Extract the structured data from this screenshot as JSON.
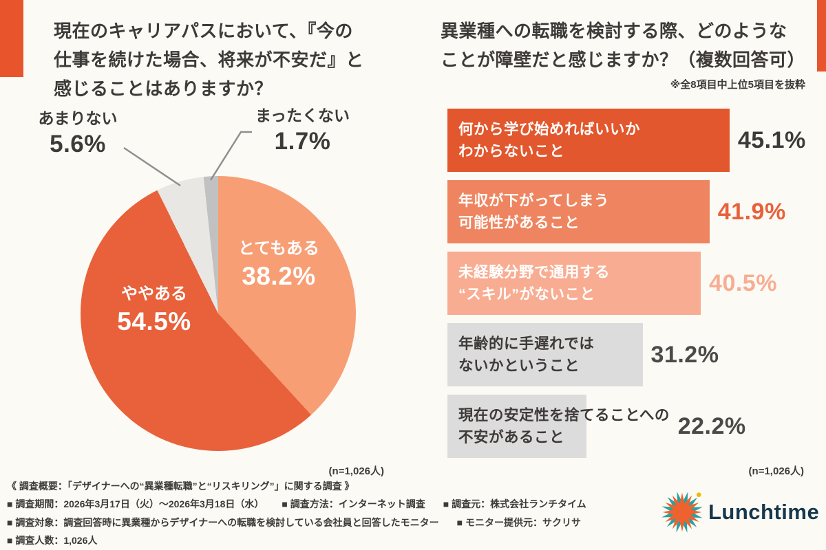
{
  "colors": {
    "bg": "#FCFAF4",
    "accent": "#E8542C",
    "text": "#3E3A39",
    "logo_text": "#16384E"
  },
  "left_chart": {
    "title": "現在のキャリアパスにおいて、『今の\n仕事を続けた場合、将来が不安だ』と\n感じることはありますか？",
    "n_label": "(n=1,026人)"
  },
  "right_chart": {
    "title": "異業種への転職を検討する際、どのような\nことが障壁だと感じますか？（複数回答可）",
    "note": "※全8項目中上位5項目を抜粋",
    "n_label": "(n=1,026人)"
  },
  "chart_data": [
    {
      "type": "pie",
      "title": "現在のキャリアパスにおいて、『今の仕事を続けた場合、将来が不安だ』と感じることはありますか？",
      "n": "n=1,026人",
      "direction": "clockwise",
      "start_angle_deg": 0,
      "slices": [
        {
          "label": "とてもある",
          "value": 38.2,
          "color": "#F79E75",
          "label_placement": "inside",
          "label_color": "#FFFFFF"
        },
        {
          "label": "ややある",
          "value": 54.5,
          "color": "#E8613B",
          "label_placement": "inside",
          "label_color": "#FFFFFF"
        },
        {
          "label": "あまりない",
          "value": 5.6,
          "color": "#E9E7E4",
          "label_placement": "outside",
          "label_color": "#3E3A39"
        },
        {
          "label": "まったくない",
          "value": 1.7,
          "color": "#C1C1C1",
          "label_placement": "outside",
          "label_color": "#3E3A39"
        }
      ]
    },
    {
      "type": "bar",
      "orientation": "horizontal",
      "title": "異業種への転職を検討する際、どのようなことが障壁だと感じますか？（複数回答可）",
      "note": "※全8項目中上位5項目を抜粋",
      "n": "n=1,026人",
      "xlim": [
        0,
        57
      ],
      "grid": false,
      "bars": [
        {
          "label": "何から学び始めればいいか\nわからないこと",
          "value": 45.1,
          "bar_color": "#E2572D",
          "label_color": "#FFFFFF",
          "value_color": "#3E3A39"
        },
        {
          "label": "年収が下がってしまう\n可能性があること",
          "value": 41.9,
          "bar_color": "#EF8560",
          "label_color": "#FFFFFF",
          "value_color": "#E8613B"
        },
        {
          "label": "未経験分野で通用する\n“スキル”がないこと",
          "value": 40.5,
          "bar_color": "#F8AD92",
          "label_color": "#FFFFFF",
          "value_color": "#F8AD92"
        },
        {
          "label": "年齢的に手遅れでは\nないかということ",
          "value": 31.2,
          "bar_color": "#DCDCDC",
          "label_color": "#3E3A39",
          "value_color": "#4C4948"
        },
        {
          "label": "現在の安定性を捨てることへの\n不安があること",
          "value": 22.2,
          "bar_color": "#DCDCDC",
          "label_color": "#3E3A39",
          "value_color": "#4C4948"
        }
      ]
    }
  ],
  "footer": {
    "overview": "《 調査概要：「デザイナーへの“異業種転職”と“リスキリング”」に関する調査 》",
    "rows": [
      [
        "■ 調査期間：2026年3月17日（火）〜2026年3月18日（水）",
        "■ 調査方法：インターネット調査",
        "■ 調査元：株式会社ランチタイム"
      ],
      [
        "■ 調査対象：調査回答時に異業種からデザイナーへの転職を検討している会社員と回答したモニター",
        "■ モニター提供元：サクリサ"
      ],
      [
        "■ 調査人数：1,026人"
      ]
    ]
  },
  "logo": {
    "text": "Lunchtime"
  }
}
